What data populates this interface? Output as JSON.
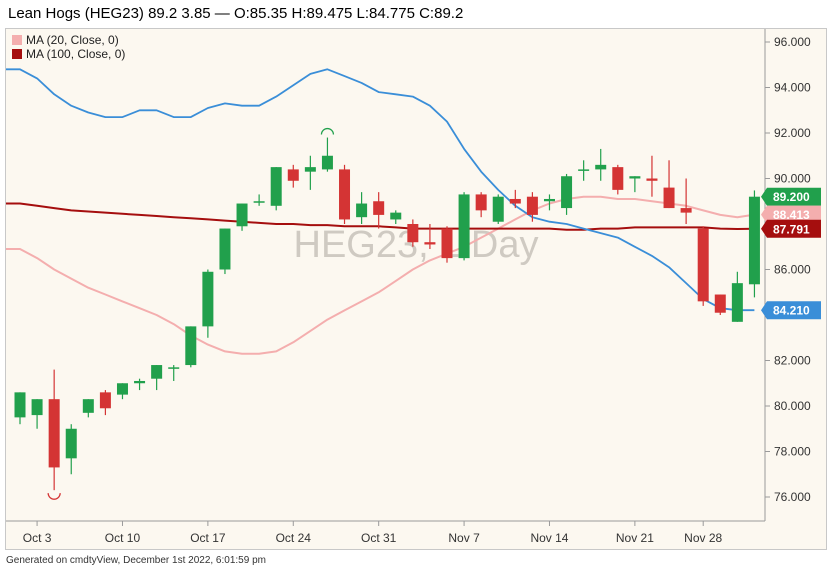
{
  "header": {
    "title": "Lean Hogs (HEG23) 89.2 3.85 — O:85.35 H:89.475 L:84.775 C:89.2"
  },
  "watermark": "HEG23, 1 Day",
  "footer": {
    "text": "Generated on cmdtyView, December 1st 2022, 6:01:59 pm"
  },
  "colors": {
    "up": "#21a04c",
    "down": "#d43434",
    "ma20": "#f4aeae",
    "ma100": "#a50e0e",
    "blue_line": "#3a8ed8",
    "background": "#fcf8f0",
    "gridline": "#ebe7de"
  },
  "chart_data": {
    "type": "candlestick",
    "y_ticks": [
      "96.000",
      "94.000",
      "92.000",
      "90.000",
      "88.000",
      "86.000",
      "84.000",
      "82.000",
      "80.000",
      "78.000",
      "76.000"
    ],
    "ylim": [
      75.0,
      97.0
    ],
    "x_ticks": [
      {
        "label": "Oct 3",
        "index": 1
      },
      {
        "label": "Oct 10",
        "index": 6
      },
      {
        "label": "Oct 17",
        "index": 11
      },
      {
        "label": "Oct 24",
        "index": 16
      },
      {
        "label": "Oct 31",
        "index": 21
      },
      {
        "label": "Nov 7",
        "index": 26
      },
      {
        "label": "Nov 14",
        "index": 31
      },
      {
        "label": "Nov 21",
        "index": 36
      },
      {
        "label": "Nov 28",
        "index": 40
      }
    ],
    "candles": [
      {
        "o": 79.5,
        "h": 80.6,
        "l": 79.2,
        "c": 80.6
      },
      {
        "o": 79.6,
        "h": 80.3,
        "l": 79.0,
        "c": 80.3
      },
      {
        "o": 80.3,
        "h": 81.6,
        "l": 76.3,
        "c": 77.3
      },
      {
        "o": 77.7,
        "h": 79.2,
        "l": 77.0,
        "c": 79.0
      },
      {
        "o": 79.7,
        "h": 80.3,
        "l": 79.5,
        "c": 80.3
      },
      {
        "o": 80.6,
        "h": 80.7,
        "l": 79.6,
        "c": 79.9
      },
      {
        "o": 80.5,
        "h": 81.0,
        "l": 80.3,
        "c": 81.0
      },
      {
        "o": 81.0,
        "h": 81.2,
        "l": 80.7,
        "c": 81.1
      },
      {
        "o": 81.2,
        "h": 81.8,
        "l": 80.7,
        "c": 81.8
      },
      {
        "o": 81.7,
        "h": 81.8,
        "l": 81.1,
        "c": 81.7
      },
      {
        "o": 81.8,
        "h": 83.5,
        "l": 81.7,
        "c": 83.5
      },
      {
        "o": 83.5,
        "h": 86.0,
        "l": 83.0,
        "c": 85.9
      },
      {
        "o": 86.0,
        "h": 87.8,
        "l": 85.8,
        "c": 87.8
      },
      {
        "o": 87.9,
        "h": 88.9,
        "l": 87.7,
        "c": 88.9
      },
      {
        "o": 89.0,
        "h": 89.3,
        "l": 88.8,
        "c": 89.0
      },
      {
        "o": 88.8,
        "h": 90.5,
        "l": 88.6,
        "c": 90.5
      },
      {
        "o": 90.4,
        "h": 90.6,
        "l": 89.6,
        "c": 89.9
      },
      {
        "o": 90.3,
        "h": 91.0,
        "l": 89.5,
        "c": 90.5
      },
      {
        "o": 90.4,
        "h": 91.8,
        "l": 90.3,
        "c": 91.0
      },
      {
        "o": 90.4,
        "h": 90.6,
        "l": 88.0,
        "c": 88.2
      },
      {
        "o": 88.3,
        "h": 89.4,
        "l": 88.0,
        "c": 88.9
      },
      {
        "o": 89.0,
        "h": 89.4,
        "l": 87.8,
        "c": 88.4
      },
      {
        "o": 88.2,
        "h": 88.6,
        "l": 88.0,
        "c": 88.5
      },
      {
        "o": 88.0,
        "h": 88.2,
        "l": 87.0,
        "c": 87.2
      },
      {
        "o": 87.2,
        "h": 88.0,
        "l": 86.9,
        "c": 87.1
      },
      {
        "o": 87.8,
        "h": 87.9,
        "l": 86.3,
        "c": 86.5
      },
      {
        "o": 86.5,
        "h": 89.4,
        "l": 86.4,
        "c": 89.3
      },
      {
        "o": 89.3,
        "h": 89.4,
        "l": 88.3,
        "c": 88.6
      },
      {
        "o": 88.1,
        "h": 89.3,
        "l": 88.0,
        "c": 89.2
      },
      {
        "o": 89.1,
        "h": 89.5,
        "l": 88.7,
        "c": 88.9
      },
      {
        "o": 89.2,
        "h": 89.4,
        "l": 88.1,
        "c": 88.4
      },
      {
        "o": 89.0,
        "h": 89.3,
        "l": 88.6,
        "c": 89.1
      },
      {
        "o": 88.7,
        "h": 90.2,
        "l": 88.4,
        "c": 90.1
      },
      {
        "o": 90.4,
        "h": 90.8,
        "l": 89.9,
        "c": 90.4
      },
      {
        "o": 90.4,
        "h": 91.3,
        "l": 89.9,
        "c": 90.6
      },
      {
        "o": 90.5,
        "h": 90.6,
        "l": 89.3,
        "c": 89.5
      },
      {
        "o": 90.0,
        "h": 90.1,
        "l": 89.4,
        "c": 90.1
      },
      {
        "o": 90.0,
        "h": 91.0,
        "l": 89.2,
        "c": 89.9
      },
      {
        "o": 89.6,
        "h": 90.8,
        "l": 88.7,
        "c": 88.7
      },
      {
        "o": 88.7,
        "h": 90.0,
        "l": 88.0,
        "c": 88.5
      },
      {
        "o": 87.8,
        "h": 87.9,
        "l": 84.4,
        "c": 84.6
      },
      {
        "o": 84.9,
        "h": 84.9,
        "l": 84.0,
        "c": 84.1
      },
      {
        "o": 83.7,
        "h": 85.9,
        "l": 83.7,
        "c": 85.4
      },
      {
        "o": 85.35,
        "h": 89.475,
        "l": 84.775,
        "c": 89.2
      }
    ],
    "series": [
      {
        "name": "MA (20, Close, 0)",
        "color": "#f4aeae",
        "values": [
          86.9,
          86.5,
          86.0,
          85.6,
          85.2,
          84.9,
          84.6,
          84.3,
          84.0,
          83.6,
          83.1,
          82.7,
          82.4,
          82.3,
          82.3,
          82.4,
          82.8,
          83.3,
          83.8,
          84.2,
          84.6,
          85.0,
          85.5,
          86.0,
          86.4,
          86.7,
          87.0,
          87.4,
          87.8,
          88.2,
          88.6,
          88.9,
          89.1,
          89.2,
          89.2,
          89.1,
          89.1,
          89.0,
          88.9,
          88.8,
          88.6,
          88.4,
          88.3,
          88.413
        ]
      },
      {
        "name": "MA (100, Close, 0)",
        "color": "#a50e0e",
        "values": [
          88.9,
          88.8,
          88.7,
          88.6,
          88.55,
          88.5,
          88.45,
          88.4,
          88.35,
          88.3,
          88.25,
          88.2,
          88.15,
          88.1,
          88.05,
          88.0,
          88.0,
          87.95,
          87.95,
          87.9,
          87.9,
          87.9,
          87.85,
          87.8,
          87.8,
          87.8,
          87.8,
          87.8,
          87.8,
          87.8,
          87.8,
          87.8,
          87.75,
          87.75,
          87.8,
          87.8,
          87.85,
          87.85,
          87.85,
          87.85,
          87.85,
          87.8,
          87.78,
          87.791
        ]
      },
      {
        "color": "#3a8ed8",
        "values": [
          94.8,
          94.4,
          93.7,
          93.2,
          92.9,
          92.7,
          92.7,
          93.0,
          93.0,
          92.7,
          92.7,
          93.1,
          93.3,
          93.2,
          93.2,
          93.6,
          94.1,
          94.6,
          94.8,
          94.5,
          94.2,
          93.8,
          93.7,
          93.6,
          93.2,
          92.5,
          91.3,
          90.3,
          89.5,
          88.8,
          88.3,
          88.1,
          88.0,
          87.8,
          87.6,
          87.4,
          87.0,
          86.6,
          86.1,
          85.4,
          84.7,
          84.3,
          84.21,
          84.21
        ]
      }
    ],
    "last_value_labels": [
      {
        "text": "89.200",
        "value": 89.2,
        "color": "#21a04c"
      },
      {
        "text": "88.413",
        "value": 88.413,
        "color": "#f4aeae"
      },
      {
        "text": "87.791",
        "value": 87.791,
        "color": "#a50e0e"
      },
      {
        "text": "84.210",
        "value": 84.21,
        "color": "#3a8ed8"
      }
    ],
    "markers": [
      {
        "type": "high",
        "index": 18,
        "value": 91.8
      },
      {
        "type": "low",
        "index": 2,
        "value": 76.3
      }
    ],
    "legend_position": "top-left",
    "grid": false
  }
}
